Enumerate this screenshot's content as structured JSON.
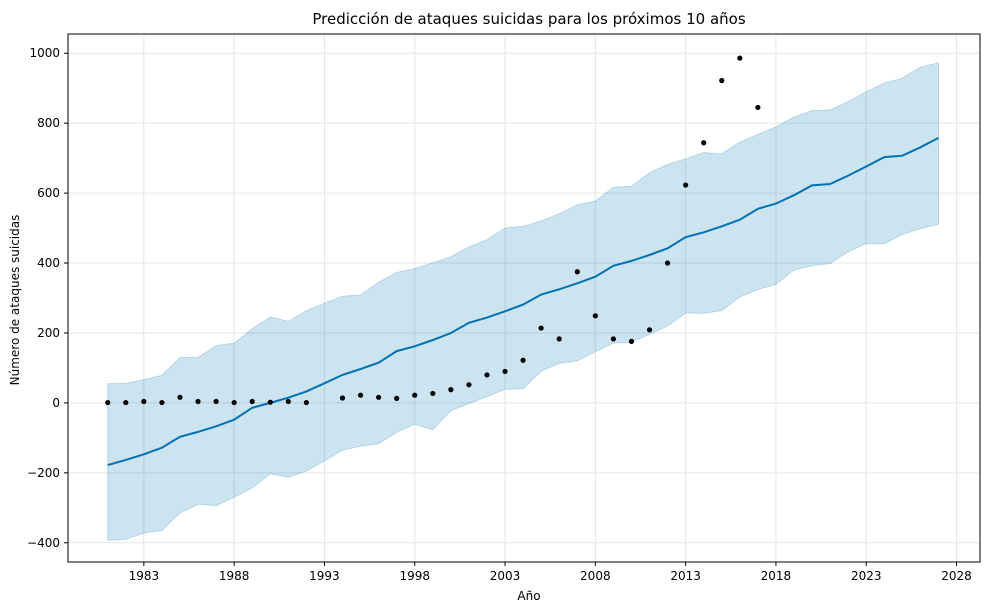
{
  "chart_data": {
    "type": "line",
    "title": "Predicción de ataques suicidas para los próximos 10 años",
    "xlabel": "Año",
    "ylabel": "Número de ataques suicidas",
    "xlim": [
      1978.8,
      2029.3
    ],
    "ylim": [
      -455,
      1055
    ],
    "x_ticks": [
      1983,
      1988,
      1993,
      1998,
      2003,
      2008,
      2013,
      2018,
      2023,
      2028
    ],
    "y_ticks": [
      -400,
      -200,
      0,
      200,
      400,
      600,
      800,
      1000
    ],
    "grid": true,
    "colors": {
      "forecast_line": "#0072B2",
      "interval_fill": "#0072B2",
      "observed_points": "#000000",
      "grid": "#e5e5e5"
    },
    "series": [
      {
        "kind": "observed",
        "x": [
          1981,
          1982,
          1983,
          1984,
          1985,
          1986,
          1987,
          1988,
          1989,
          1990,
          1991,
          1992,
          1994,
          1995,
          1996,
          1997,
          1998,
          1999,
          2000,
          2001,
          2002,
          2003,
          2004,
          2005,
          2006,
          2007,
          2008,
          2009,
          2010,
          2011,
          2012,
          2013,
          2014,
          2015,
          2016,
          2017
        ],
        "values": [
          1,
          1,
          4,
          1,
          16,
          4,
          4,
          1,
          4,
          2,
          4,
          1,
          14,
          22,
          16,
          13,
          22,
          27,
          38,
          52,
          80,
          90,
          122,
          214,
          183,
          375,
          249,
          183,
          176,
          209,
          400,
          623,
          744,
          922,
          986,
          845
        ]
      },
      {
        "kind": "forecast",
        "x": [
          1981,
          1982,
          1983,
          1984,
          1985,
          1986,
          1987,
          1988,
          1989,
          1990,
          1991,
          1992,
          1993,
          1994,
          1995,
          1996,
          1997,
          1998,
          1999,
          2000,
          2001,
          2002,
          2003,
          2004,
          2005,
          2006,
          2007,
          2008,
          2009,
          2010,
          2011,
          2012,
          2013,
          2014,
          2015,
          2016,
          2017,
          2018,
          2019,
          2020,
          2021,
          2022,
          2023,
          2024,
          2025,
          2026,
          2027
        ],
        "values": [
          -178,
          -163,
          -147,
          -128,
          -97,
          -83,
          -67,
          -48,
          -14,
          0,
          15,
          33,
          56,
          80,
          97,
          115,
          148,
          162,
          180,
          200,
          229,
          244,
          262,
          281,
          310,
          325,
          342,
          361,
          392,
          406,
          423,
          442,
          474,
          488,
          505,
          524,
          555,
          570,
          594,
          622,
          626,
          650,
          676,
          703,
          707,
          731,
          758
        ],
        "lower": [
          -393,
          -390,
          -372,
          -365,
          -315,
          -290,
          -294,
          -270,
          -243,
          -203,
          -213,
          -195,
          -166,
          -135,
          -124,
          -117,
          -84,
          -61,
          -77,
          -22,
          -2,
          18,
          39,
          40,
          91,
          113,
          120,
          146,
          171,
          174,
          196,
          220,
          257,
          256,
          264,
          303,
          324,
          339,
          380,
          392,
          398,
          432,
          455,
          455,
          482,
          498,
          511
        ],
        "upper": [
          55,
          56,
          67,
          79,
          130,
          130,
          164,
          171,
          212,
          246,
          233,
          264,
          285,
          305,
          309,
          345,
          373,
          384,
          401,
          418,
          446,
          467,
          500,
          505,
          521,
          541,
          567,
          577,
          617,
          620,
          658,
          682,
          698,
          716,
          712,
          746,
          768,
          789,
          818,
          836,
          838,
          862,
          890,
          915,
          929,
          960,
          973
        ]
      }
    ]
  }
}
